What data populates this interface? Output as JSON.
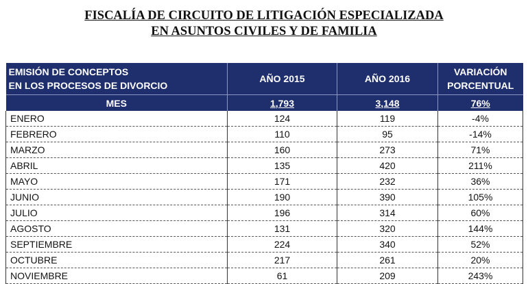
{
  "title": {
    "line1": "FISCALÍA DE CIRCUITO DE LITIGACIÓN ESPECIALIZADA",
    "line2": "EN ASUNTOS CIVILES Y DE FAMILIA"
  },
  "table": {
    "headers": {
      "col1_line1": "EMISIÓN DE CONCEPTOS",
      "col1_line2": "EN LOS PROCESOS DE DIVORCIO",
      "col2": "AÑO 2015",
      "col3": "AÑO 2016",
      "col4_line1": "VARIACIÓN",
      "col4_line2": "PORCENTUAL"
    },
    "totals": {
      "label": "MES",
      "y2015": "1,793",
      "y2016": "3,148",
      "variation": "76%"
    },
    "rows": [
      {
        "month": "ENERO",
        "y2015": "124",
        "y2016": "119",
        "variation": "-4%"
      },
      {
        "month": "FEBRERO",
        "y2015": "110",
        "y2016": "95",
        "variation": "-14%"
      },
      {
        "month": "MARZO",
        "y2015": "160",
        "y2016": "273",
        "variation": "71%"
      },
      {
        "month": "ABRIL",
        "y2015": "135",
        "y2016": "420",
        "variation": "211%"
      },
      {
        "month": "MAYO",
        "y2015": "171",
        "y2016": "232",
        "variation": "36%"
      },
      {
        "month": "JUNIO",
        "y2015": "190",
        "y2016": "390",
        "variation": "105%"
      },
      {
        "month": "JULIO",
        "y2015": "196",
        "y2016": "314",
        "variation": "60%"
      },
      {
        "month": "AGOSTO",
        "y2015": "131",
        "y2016": "320",
        "variation": "144%"
      },
      {
        "month": "SEPTIEMBRE",
        "y2015": "224",
        "y2016": "340",
        "variation": "52%"
      },
      {
        "month": "OCTUBRE",
        "y2015": "217",
        "y2016": "261",
        "variation": "20%"
      },
      {
        "month": "NOVIEMBRE",
        "y2015": "61",
        "y2016": "209",
        "variation": "243%"
      }
    ]
  }
}
